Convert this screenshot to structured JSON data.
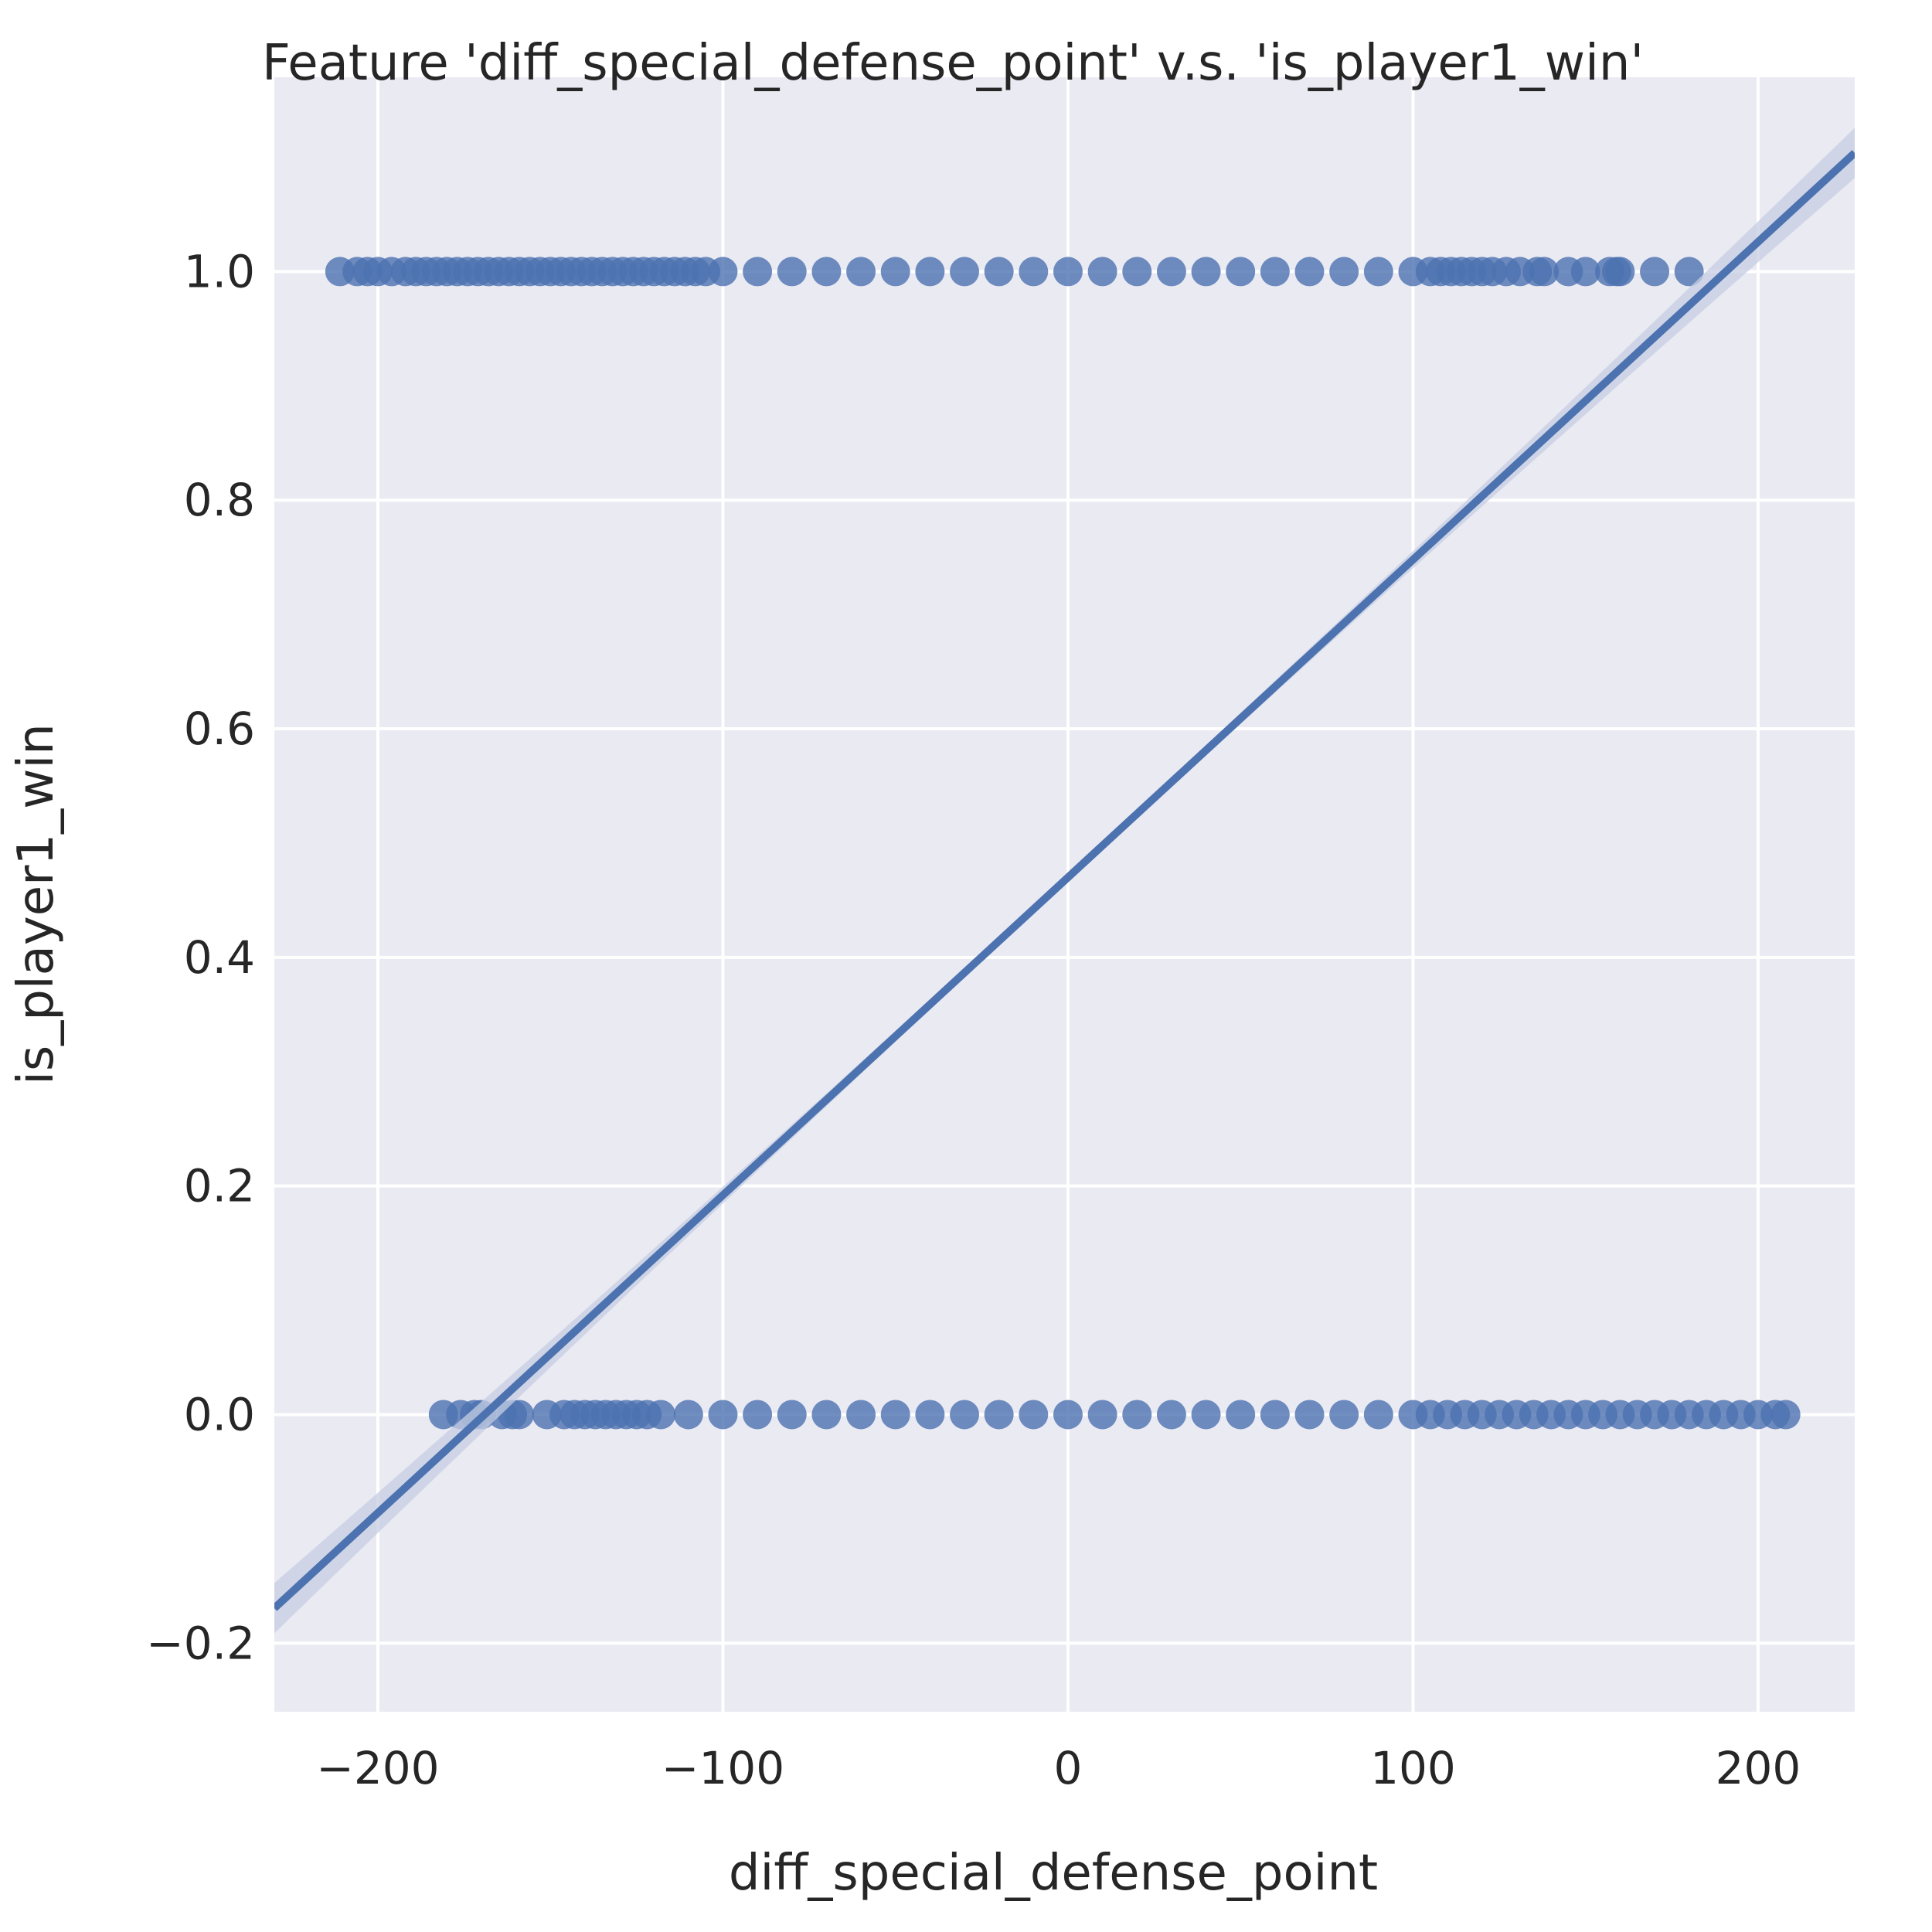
{
  "chart_data": {
    "type": "scatter",
    "title": "Feature 'diff_special_defense_point' v.s. 'is_player1_win'",
    "xlabel": "diff_special_defense_point",
    "ylabel": "is_player1_win",
    "xlim": [
      -230,
      228
    ],
    "ylim": [
      -0.26,
      1.17
    ],
    "xticks": [
      -200,
      -100,
      0,
      100,
      200
    ],
    "xtick_labels": [
      "−200",
      "−100",
      "0",
      "100",
      "200"
    ],
    "yticks": [
      -0.2,
      0.0,
      0.2,
      0.4,
      0.6,
      0.8,
      1.0
    ],
    "ytick_labels": [
      "−0.2",
      "0.0",
      "0.2",
      "0.4",
      "0.6",
      "0.8",
      "1.0"
    ],
    "grid": true,
    "colors": {
      "background": "#eaeaf2",
      "grid": "#ffffff",
      "series": "#4c72b0",
      "ci_band": "#c6cde3"
    },
    "series": [
      {
        "kind": "points",
        "y": 1,
        "x": [
          -211,
          -206,
          -203,
          -200,
          -196,
          -192,
          -189,
          -186,
          -183,
          -180,
          -177,
          -174,
          -171,
          -168,
          -165,
          -162,
          -159,
          -156,
          -153,
          -150,
          -147,
          -144,
          -141,
          -138,
          -135,
          -132,
          -129,
          -126,
          -123,
          -120,
          -117,
          -114,
          -111,
          -108,
          -105,
          -100,
          -90,
          -80,
          -70,
          -60,
          -50,
          -40,
          -30,
          -20,
          -10,
          0,
          10,
          20,
          30,
          40,
          50,
          60,
          70,
          80,
          90,
          100,
          105,
          108,
          111,
          114,
          117,
          120,
          123,
          127,
          131,
          136,
          138,
          145,
          150,
          157,
          159,
          160,
          170,
          180
        ]
      },
      {
        "kind": "points",
        "y": 0,
        "x": [
          -181,
          -176,
          -172,
          -170,
          -164,
          -161,
          -159,
          -151,
          -146,
          -143,
          -140,
          -137,
          -134,
          -131,
          -128,
          -125,
          -122,
          -118,
          -110,
          -100,
          -90,
          -80,
          -70,
          -60,
          -50,
          -40,
          -30,
          -20,
          -10,
          0,
          10,
          20,
          30,
          40,
          50,
          60,
          70,
          80,
          90,
          100,
          105,
          110,
          115,
          120,
          125,
          130,
          135,
          140,
          145,
          150,
          155,
          160,
          165,
          170,
          175,
          180,
          185,
          190,
          195,
          200,
          205,
          208
        ]
      },
      {
        "kind": "regression",
        "slope": 0.00278,
        "intercept": 0.47,
        "ci_halfwidth_edge": 0.022,
        "ci_halfwidth_center": 0.004
      }
    ]
  }
}
